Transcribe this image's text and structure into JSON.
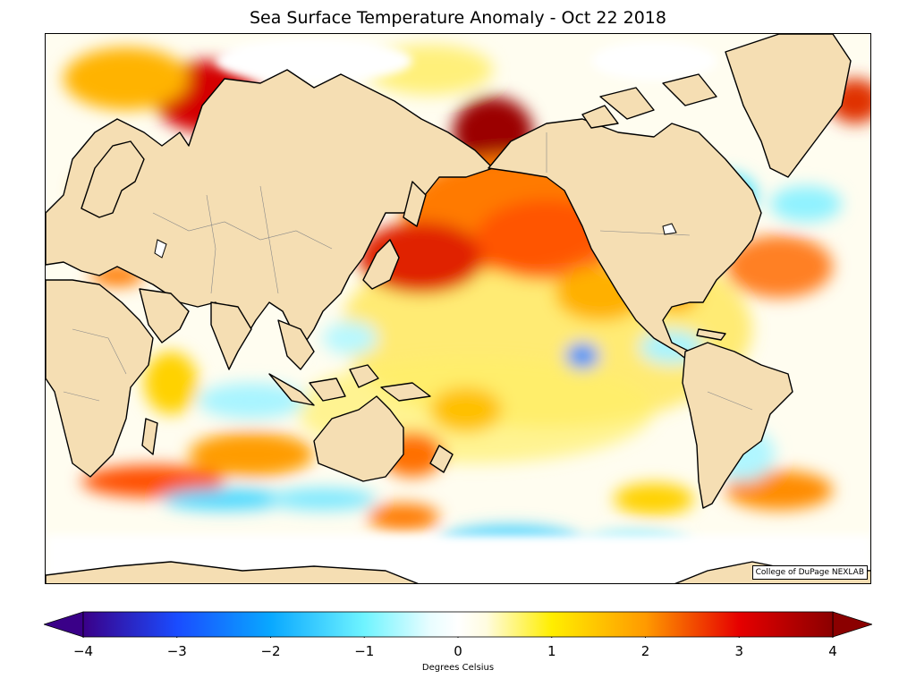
{
  "title": "Sea Surface Temperature Anomaly - Oct 22 2018",
  "credit": "College of DuPage NEXLAB",
  "colorbar": {
    "label": "Degrees Celsius",
    "min": -4,
    "max": 4,
    "ticks": [
      {
        "value": -4,
        "label": "−4"
      },
      {
        "value": -3,
        "label": "−3"
      },
      {
        "value": -2,
        "label": "−2"
      },
      {
        "value": -1,
        "label": "−1"
      },
      {
        "value": 0,
        "label": "0"
      },
      {
        "value": 1,
        "label": "1"
      },
      {
        "value": 2,
        "label": "2"
      },
      {
        "value": 3,
        "label": "3"
      },
      {
        "value": 4,
        "label": "4"
      }
    ],
    "stops": [
      {
        "value": -4,
        "color": "#3a0088"
      },
      {
        "value": -3,
        "color": "#1a4cff"
      },
      {
        "value": -2,
        "color": "#09a8ff"
      },
      {
        "value": -1,
        "color": "#6ff4ff"
      },
      {
        "value": -0.3,
        "color": "#e8fdff"
      },
      {
        "value": 0,
        "color": "#ffffff"
      },
      {
        "value": 0.3,
        "color": "#fffce0"
      },
      {
        "value": 1,
        "color": "#ffee00"
      },
      {
        "value": 2,
        "color": "#ff9a00"
      },
      {
        "value": 3,
        "color": "#e60000"
      },
      {
        "value": 4,
        "color": "#8b0000"
      }
    ]
  },
  "colors": {
    "land": "#f5deb3",
    "coastline": "#000000",
    "borders": "#888888",
    "ocean_neutral": "#ffffff"
  }
}
